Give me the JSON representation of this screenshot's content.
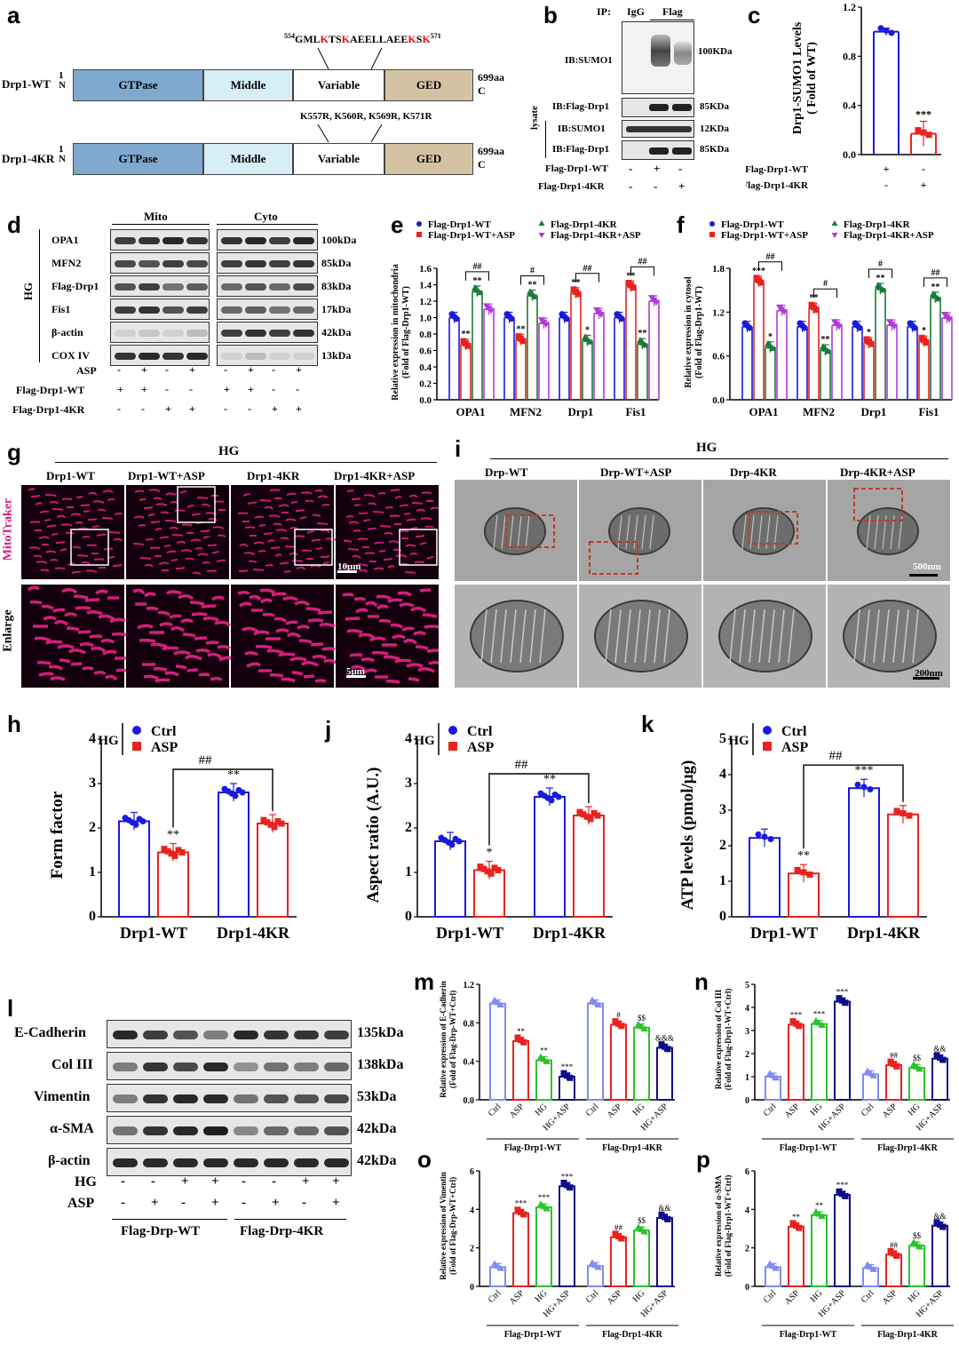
{
  "labels": {
    "a": "a",
    "b": "b",
    "c": "c",
    "d": "d",
    "e": "e",
    "f": "f",
    "g": "g",
    "h": "h",
    "i": "i",
    "j": "j",
    "k": "k",
    "l": "l",
    "m": "m",
    "n": "n",
    "o": "o",
    "p": "p"
  },
  "panel_a": {
    "seq_top_super": "554",
    "seq_top": "GMLKTSKAEELLAEEKSK",
    "seq_top_end": "571",
    "mutations": "K557R, K560R, K569R, K571R",
    "rows": [
      {
        "name": "Drp1-WT",
        "n_label": "1\nN",
        "c_label": "699aa\nC"
      },
      {
        "name": "Drp1-4KR",
        "n_label": "1\nN",
        "c_label": "699aa\nC"
      }
    ],
    "domains": [
      {
        "name": "GTPase",
        "color": "#7fa9cf"
      },
      {
        "name": "Middle",
        "color": "#d8eef6"
      },
      {
        "name": "Variable",
        "color": "#ffffff"
      },
      {
        "name": "GED",
        "color": "#d4c3a3"
      }
    ]
  },
  "panel_b": {
    "ip": "IP:",
    "igg": "IgG",
    "flag": "Flag",
    "blots": [
      "IB:SUMO1",
      "IB:Flag-Drp1",
      "IB:SUMO1",
      "IB:Flag-Drp1"
    ],
    "sizes": [
      "100KDa",
      "85KDa",
      "12KDa",
      "85KDa"
    ],
    "lysate": "lysate",
    "rows": [
      {
        "name": "Flag-Drp1-WT",
        "marks": [
          "-",
          "+",
          "-"
        ]
      },
      {
        "name": "Flag-Drp1-4KR",
        "marks": [
          "-",
          "-",
          "+"
        ]
      }
    ]
  },
  "panel_d": {
    "mito": "Mito",
    "cyto": "Cyto",
    "hg": "HG",
    "proteins": [
      "OPA1",
      "MFN2",
      "Flag-Drp1",
      "Fis1",
      "β-actin",
      "COX IV"
    ],
    "sizes": [
      "100kDa",
      "85kDa",
      "83kDa",
      "17kDa",
      "42kDa",
      "13kDa"
    ],
    "rows": [
      {
        "name": "ASP",
        "marks": [
          "-",
          "+",
          "-",
          "+",
          "-",
          "+",
          "-",
          "+"
        ]
      },
      {
        "name": "Flag-Drp1-WT",
        "marks": [
          "+",
          "+",
          "-",
          "-",
          "+",
          "+",
          "-",
          "-"
        ]
      },
      {
        "name": "Flag-Drp1-4KR",
        "marks": [
          "-",
          "-",
          "+",
          "+",
          "-",
          "-",
          "+",
          "+"
        ]
      }
    ]
  },
  "panel_g": {
    "hg": "HG",
    "cols": [
      "Drp1-WT",
      "Drp1-WT+ASP",
      "Drp1-4KR",
      "Drp1-4KR+ASP"
    ],
    "row1": "MitoTraker",
    "row2": "Enlarge",
    "scale1": "10μm",
    "scale2": "5μm"
  },
  "panel_i": {
    "hg": "HG",
    "cols": [
      "Drp-WT",
      "Drp-WT+ASP",
      "Drp-4KR",
      "Drp-4KR+ASP"
    ],
    "scale1": "500nm",
    "scale2": "200nm"
  },
  "panel_l": {
    "proteins": [
      "E-Cadherin",
      "Col III",
      "Vimentin",
      "α-SMA",
      "β-actin"
    ],
    "sizes": [
      "135kDa",
      "138kDa",
      "53kDa",
      "42kDa",
      "42kDa"
    ],
    "rows": [
      {
        "name": "HG",
        "marks": [
          "-",
          "-",
          "+",
          "+",
          "-",
          "-",
          "+",
          "+"
        ]
      },
      {
        "name": "ASP",
        "marks": [
          "-",
          "+",
          "-",
          "+",
          "-",
          "+",
          "-",
          "+"
        ]
      }
    ],
    "groups": [
      "Flag-Drp-WT",
      "Flag-Drp-4KR"
    ]
  },
  "chart_data": [
    {
      "id": "c",
      "type": "bar",
      "ylabel": "Drp1-SUMO1 Levels\n( Fold of WT)",
      "ylim": [
        0,
        1.2
      ],
      "yticks": [
        "0.0",
        "0.4",
        "0.8",
        "1.2"
      ],
      "categories": [
        "WT",
        "4KR"
      ],
      "values": [
        1.0,
        0.17
      ],
      "colors": [
        "#1a1adb",
        "#e8231f"
      ],
      "sig": [
        "",
        "***"
      ],
      "rows": [
        {
          "name": "Flag-Drp1-WT",
          "marks": [
            "+",
            "-"
          ]
        },
        {
          "name": "Flag-Drp1-4KR",
          "marks": [
            "-",
            "+"
          ]
        }
      ]
    },
    {
      "id": "e",
      "type": "bar",
      "ylabel": "Relative expression in mitochondria\n(Fold of Flag-Drp1-WT)",
      "ylim": [
        0,
        1.6
      ],
      "yticks": [
        "0.0",
        "0.2",
        "0.4",
        "0.6",
        "0.8",
        "1.0",
        "1.2",
        "1.4",
        "1.6"
      ],
      "categories": [
        "OPA1",
        "MFN2",
        "Drp1",
        "Fis1"
      ],
      "series": [
        {
          "name": "Flag-Drp1-WT",
          "color": "#1a1adb",
          "values": [
            1.0,
            1.0,
            1.0,
            1.0
          ],
          "sig": [
            "",
            "",
            "",
            ""
          ]
        },
        {
          "name": "Flag-Drp1-WT+ASP",
          "color": "#e8231f",
          "values": [
            0.67,
            0.73,
            1.3,
            1.38
          ],
          "sig": [
            "**",
            "**",
            "**",
            "**"
          ]
        },
        {
          "name": "Flag-Drp1-4KR",
          "color": "#1a7a3a",
          "values": [
            1.32,
            1.27,
            0.72,
            0.68
          ],
          "sig": [
            "**",
            "**",
            "*",
            "**"
          ]
        },
        {
          "name": "Flag-Drp1-4KR+ASP",
          "color": "#b23ad9",
          "values": [
            1.1,
            0.93,
            1.05,
            1.2
          ],
          "sig": [
            "",
            "",
            "",
            ""
          ]
        }
      ],
      "brackets": [
        "##",
        "#",
        "##",
        "##"
      ]
    },
    {
      "id": "f",
      "type": "bar",
      "ylabel": "Relative expression in cytosol\n(Fold of Flag-Drp1-WT)",
      "ylim": [
        0,
        1.8
      ],
      "yticks": [
        "0.0",
        "0.6",
        "1.2",
        "1.8"
      ],
      "categories": [
        "OPA1",
        "MFN2",
        "Drp1",
        "Fis1"
      ],
      "series": [
        {
          "name": "Flag-Drp1-WT",
          "color": "#1a1adb",
          "values": [
            1.0,
            1.0,
            1.0,
            1.0
          ],
          "sig": [
            "",
            "",
            "",
            ""
          ]
        },
        {
          "name": "Flag-Drp1-WT+ASP",
          "color": "#e8231f",
          "values": [
            1.62,
            1.25,
            0.78,
            0.8
          ],
          "sig": [
            "***",
            "**",
            "*",
            "*"
          ]
        },
        {
          "name": "Flag-Drp1-4KR",
          "color": "#1a7a3a",
          "values": [
            0.72,
            0.68,
            1.52,
            1.4
          ],
          "sig": [
            "*",
            "**",
            "**",
            "**"
          ]
        },
        {
          "name": "Flag-Drp1-4KR+ASP",
          "color": "#b23ad9",
          "values": [
            1.22,
            1.02,
            1.02,
            1.12
          ],
          "sig": [
            "",
            "",
            "",
            ""
          ]
        }
      ],
      "brackets": [
        "##",
        "#",
        "#",
        "##"
      ]
    },
    {
      "id": "h",
      "type": "bar",
      "ylabel": "Form factor",
      "ylim": [
        0,
        4
      ],
      "yticks": [
        "0",
        "1",
        "2",
        "3",
        "4"
      ],
      "categories": [
        "Drp1-WT",
        "Drp1-4KR"
      ],
      "series": [
        {
          "name": "Ctrl",
          "color": "#1a1adb",
          "values": [
            2.15,
            2.8
          ],
          "sig": [
            "",
            "**"
          ]
        },
        {
          "name": "ASP",
          "color": "#e8231f",
          "values": [
            1.45,
            2.1
          ],
          "sig": [
            "**",
            ""
          ]
        }
      ],
      "legend_prefix": "HG",
      "bracket": "##"
    },
    {
      "id": "j",
      "type": "bar",
      "ylabel": "Aspect ratio (A.U.)",
      "ylim": [
        0,
        4
      ],
      "yticks": [
        "0",
        "1",
        "2",
        "3",
        "4"
      ],
      "categories": [
        "Drp1-WT",
        "Drp1-4KR"
      ],
      "series": [
        {
          "name": "Ctrl",
          "color": "#1a1adb",
          "values": [
            1.7,
            2.7
          ],
          "sig": [
            "",
            "**"
          ]
        },
        {
          "name": "ASP",
          "color": "#e8231f",
          "values": [
            1.05,
            2.28
          ],
          "sig": [
            "*",
            ""
          ]
        }
      ],
      "legend_prefix": "HG",
      "bracket": "##"
    },
    {
      "id": "k",
      "type": "bar",
      "ylabel": "ATP levels (pmol/μg)",
      "ylim": [
        0,
        5
      ],
      "yticks": [
        "0",
        "1",
        "2",
        "3",
        "4",
        "5"
      ],
      "categories": [
        "Drp1-WT",
        "Drp1-4KR"
      ],
      "series": [
        {
          "name": "Ctrl",
          "color": "#1a1adb",
          "values": [
            2.22,
            3.62
          ],
          "sig": [
            "",
            "***"
          ]
        },
        {
          "name": "ASP",
          "color": "#e8231f",
          "values": [
            1.22,
            2.88
          ],
          "sig": [
            "**",
            ""
          ]
        }
      ],
      "legend_prefix": "HG",
      "bracket": "##"
    },
    {
      "id": "m",
      "type": "bar",
      "ylabel": "Relative expression of E-Cadherin\n(Fold of Flag-Drp-WT+Ctrl)",
      "ylim": [
        0,
        1.2
      ],
      "yticks": [
        "0.0",
        "0.4",
        "0.8",
        "1.2"
      ],
      "categories": [
        "Ctrl",
        "ASP",
        "HG",
        "HG+ASP",
        "Ctrl",
        "ASP",
        "HG",
        "HG+ASP"
      ],
      "values": [
        1.0,
        0.61,
        0.41,
        0.24,
        1.0,
        0.78,
        0.75,
        0.54
      ],
      "colors": [
        "#7f8cf0",
        "#e8231f",
        "#2ec12e",
        "#0d0d8a",
        "#7f8cf0",
        "#e8231f",
        "#2ec12e",
        "#0d0d8a"
      ],
      "sig": [
        "",
        "**",
        "**",
        "***",
        "",
        "#",
        "$$",
        "&&&"
      ],
      "groups": [
        "Flag-Drp1-WT",
        "Flag-Drp1-4KR"
      ]
    },
    {
      "id": "n",
      "type": "bar",
      "ylabel": "Relative expression of Col III\n(Fold of Flag-Drp1-WT+Ctrl)",
      "ylim": [
        0,
        5
      ],
      "yticks": [
        "0",
        "1",
        "2",
        "3",
        "4",
        "5"
      ],
      "categories": [
        "Ctrl",
        "ASP",
        "HG",
        "HG+ASP",
        "Ctrl",
        "ASP",
        "HG",
        "HG+ASP"
      ],
      "values": [
        1.0,
        3.25,
        3.28,
        4.25,
        1.1,
        1.5,
        1.38,
        1.78
      ],
      "colors": [
        "#7f8cf0",
        "#e8231f",
        "#2ec12e",
        "#0d0d8a",
        "#7f8cf0",
        "#e8231f",
        "#2ec12e",
        "#0d0d8a"
      ],
      "sig": [
        "",
        "***",
        "***",
        "***",
        "",
        "##",
        "$$",
        "&&"
      ],
      "groups": [
        "Flag-Drp1-WT",
        "Flag-Drp1-4KR"
      ]
    },
    {
      "id": "o",
      "type": "bar",
      "ylabel": "Relative expression of Vimentin\n(Fold of Flag-Drp-WT+Ctrl)",
      "ylim": [
        0,
        6
      ],
      "yticks": [
        "0",
        "2",
        "4",
        "6"
      ],
      "categories": [
        "Ctrl",
        "ASP",
        "HG",
        "HG+ASP",
        "Ctrl",
        "ASP",
        "HG",
        "HG+ASP"
      ],
      "values": [
        1.0,
        3.8,
        4.1,
        5.2,
        1.05,
        2.55,
        2.9,
        3.55
      ],
      "colors": [
        "#7f8cf0",
        "#e8231f",
        "#2ec12e",
        "#0d0d8a",
        "#7f8cf0",
        "#e8231f",
        "#2ec12e",
        "#0d0d8a"
      ],
      "sig": [
        "",
        "***",
        "***",
        "***",
        "",
        "##",
        "$$",
        "&&"
      ],
      "groups": [
        "Flag-Drp1-WT",
        "Flag-Drp1-4KR"
      ]
    },
    {
      "id": "p",
      "type": "bar",
      "ylabel": "Relative expression of α-SMA\n(Fold of Flag-Drp1-WT+Ctrl)",
      "ylim": [
        0,
        6
      ],
      "yticks": [
        "0",
        "2",
        "4",
        "6"
      ],
      "categories": [
        "Ctrl",
        "ASP",
        "HG",
        "HG+ASP",
        "Ctrl",
        "ASP",
        "HG",
        "HG+ASP"
      ],
      "values": [
        1.0,
        3.1,
        3.7,
        4.75,
        0.95,
        1.65,
        2.12,
        3.15
      ],
      "colors": [
        "#7f8cf0",
        "#e8231f",
        "#2ec12e",
        "#0d0d8a",
        "#7f8cf0",
        "#e8231f",
        "#2ec12e",
        "#0d0d8a"
      ],
      "sig": [
        "",
        "**",
        "**",
        "***",
        "",
        "##",
        "$$",
        "&&"
      ],
      "groups": [
        "Flag-Drp1-WT",
        "Flag-Drp1-4KR"
      ]
    }
  ]
}
